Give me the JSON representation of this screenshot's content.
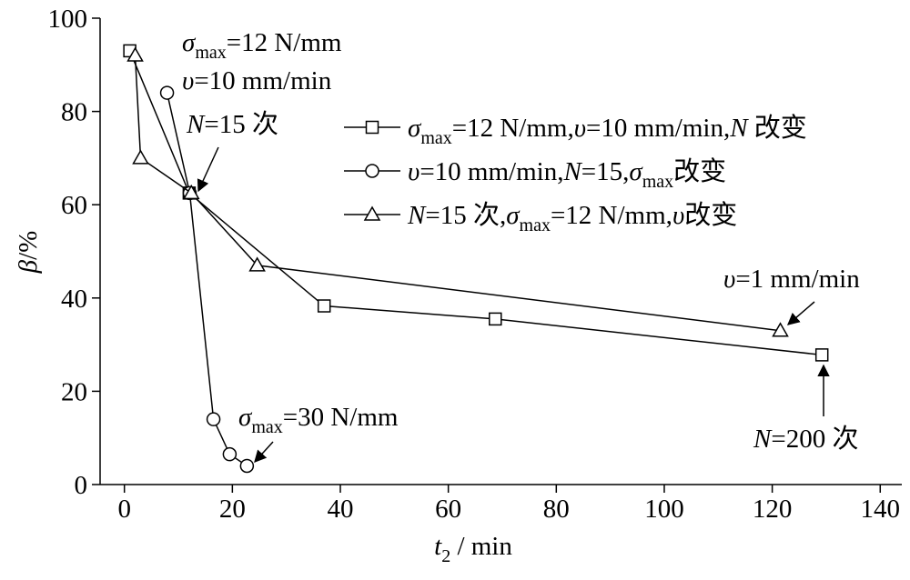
{
  "chart_data": {
    "type": "line",
    "xlabel": [
      {
        "text": "t",
        "italic": true
      },
      {
        "text": "2",
        "sub": true
      },
      {
        "text": " / min"
      }
    ],
    "ylabel": [
      {
        "text": "β",
        "italic": true
      },
      {
        "text": "/%"
      }
    ],
    "xlim": [
      -4.5,
      144
    ],
    "xticks": [
      0,
      20,
      40,
      60,
      80,
      100,
      120,
      140
    ],
    "ylim": [
      0,
      100
    ],
    "yticks": [
      0,
      20,
      40,
      60,
      80,
      100
    ],
    "series": [
      {
        "name": [
          {
            "text": "σ",
            "italic": true
          },
          {
            "text": "max",
            "sub": true
          },
          {
            "text": "=12 N/mm,"
          },
          {
            "text": "υ",
            "italic": true
          },
          {
            "text": "=10 mm/min,"
          },
          {
            "text": "N",
            "italic": true
          },
          {
            "text": " 改变"
          }
        ],
        "marker": "square",
        "color": "#000000",
        "x": [
          1,
          12,
          37,
          68.7,
          129.2
        ],
        "values": [
          93,
          62.5,
          38.3,
          35.5,
          27.8
        ]
      },
      {
        "name": [
          {
            "text": "υ",
            "italic": true
          },
          {
            "text": "=10 mm/min,"
          },
          {
            "text": "N",
            "italic": true
          },
          {
            "text": "=15,"
          },
          {
            "text": "σ",
            "italic": true
          },
          {
            "text": "max",
            "sub": true
          },
          {
            "text": "改变"
          }
        ],
        "marker": "circle",
        "color": "#000000",
        "x": [
          7.9,
          12.1,
          16.5,
          19.5,
          22.7
        ],
        "values": [
          84,
          62.5,
          14,
          6.5,
          4
        ]
      },
      {
        "name": [
          {
            "text": "N",
            "italic": true
          },
          {
            "text": "=15 次,"
          },
          {
            "text": "σ",
            "italic": true
          },
          {
            "text": "max",
            "sub": true
          },
          {
            "text": "=12 N/mm,"
          },
          {
            "text": "υ",
            "italic": true
          },
          {
            "text": "改变"
          }
        ],
        "marker": "triangle",
        "color": "#000000",
        "x": [
          2,
          3,
          12.4,
          24.6,
          121.5
        ],
        "values": [
          92,
          70,
          62.5,
          47,
          33
        ]
      }
    ],
    "annotations": [
      {
        "runs": [
          {
            "text": "σ",
            "italic": true
          },
          {
            "text": "max",
            "sub": true
          },
          {
            "text": "=12 N/mm"
          }
        ]
      },
      {
        "runs": [
          {
            "text": "υ",
            "italic": true
          },
          {
            "text": "=10 mm/min"
          }
        ]
      },
      {
        "runs": [
          {
            "text": "N",
            "italic": true
          },
          {
            "text": "=15 次"
          }
        ]
      },
      {
        "runs": [
          {
            "text": "υ",
            "italic": true
          },
          {
            "text": "=1 mm/min"
          }
        ]
      },
      {
        "runs": [
          {
            "text": "N",
            "italic": true
          },
          {
            "text": "=200 次"
          }
        ]
      },
      {
        "runs": [
          {
            "text": "σ",
            "italic": true
          },
          {
            "text": "max",
            "sub": true
          },
          {
            "text": "=30 N/mm"
          }
        ]
      }
    ]
  }
}
